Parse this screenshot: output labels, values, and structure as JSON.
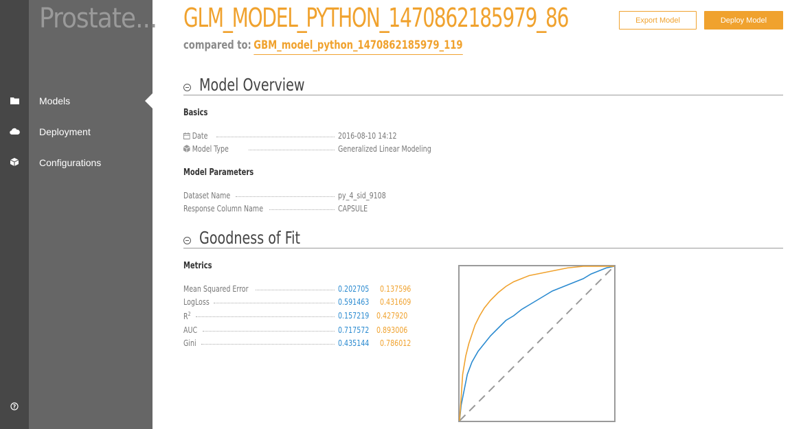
{
  "sidebar": {
    "project_name": "Prostate...",
    "items": [
      {
        "label": "Models",
        "icon": "folder-icon"
      },
      {
        "label": "Deployment",
        "icon": "cloud-icon"
      },
      {
        "label": "Configurations",
        "icon": "cube-icon"
      }
    ],
    "help_icon": "help-icon"
  },
  "header": {
    "title": "GLM_MODEL_PYTHON_1470862185979_86",
    "compared_label": "compared to:",
    "compared_value": "GBM_model_python_1470862185979_119",
    "export_label": "Export Model",
    "deploy_label": "Deploy Model"
  },
  "overview": {
    "title": "Model Overview",
    "basics_title": "Basics",
    "date_label": "Date",
    "date_value": "2016-08-10 14:12",
    "type_label": "Model Type",
    "type_value": "Generalized Linear Modeling",
    "params_title": "Model Parameters",
    "dataset_label": "Dataset Name",
    "dataset_value": "py_4_sid_9108",
    "response_label": "Response Column Name",
    "response_value": "CAPSULE"
  },
  "fit": {
    "title": "Goodness of Fit",
    "metrics_title": "Metrics",
    "metrics": [
      {
        "label": "Mean Squared Error",
        "v1": "0.202705",
        "v2": "0.137596"
      },
      {
        "label": "LogLoss",
        "v1": "0.591463",
        "v2": "0.431609"
      },
      {
        "label": "R",
        "sup": "2",
        "v1": "0.157219",
        "v2": "0.427920"
      },
      {
        "label": "AUC",
        "v1": "0.717572",
        "v2": "0.893006"
      },
      {
        "label": "Gini",
        "v1": "0.435144",
        "v2": "0.786012"
      }
    ]
  },
  "colors": {
    "accent": "#f0a22e",
    "blue": "#2a8ad0"
  },
  "chart_data": {
    "type": "line",
    "xlim": [
      0,
      1
    ],
    "ylim": [
      0,
      1
    ],
    "series": [
      {
        "color": "#2a8ad0",
        "x": [
          0,
          0.01,
          0.03,
          0.05,
          0.08,
          0.12,
          0.16,
          0.2,
          0.25,
          0.3,
          0.35,
          0.4,
          0.45,
          0.5,
          0.55,
          0.6,
          0.65,
          0.7,
          0.75,
          0.8,
          0.85,
          0.9,
          0.95,
          1.0
        ],
        "y": [
          0,
          0.1,
          0.2,
          0.3,
          0.38,
          0.45,
          0.5,
          0.55,
          0.6,
          0.65,
          0.68,
          0.72,
          0.75,
          0.78,
          0.81,
          0.84,
          0.86,
          0.88,
          0.9,
          0.92,
          0.95,
          0.97,
          0.99,
          1.0
        ]
      },
      {
        "color": "#f0a22e",
        "x": [
          0,
          0.01,
          0.02,
          0.04,
          0.06,
          0.08,
          0.1,
          0.13,
          0.16,
          0.2,
          0.25,
          0.3,
          0.35,
          0.4,
          0.45,
          0.5,
          0.55,
          0.6,
          0.65,
          0.7,
          0.8,
          0.9,
          1.0
        ],
        "y": [
          0,
          0.15,
          0.3,
          0.42,
          0.5,
          0.56,
          0.62,
          0.68,
          0.73,
          0.78,
          0.83,
          0.87,
          0.9,
          0.92,
          0.94,
          0.95,
          0.96,
          0.97,
          0.98,
          0.99,
          1.0,
          1.0,
          1.0
        ]
      },
      {
        "color": "#999999",
        "dashed": true,
        "x": [
          0,
          1
        ],
        "y": [
          0,
          1
        ]
      }
    ]
  }
}
